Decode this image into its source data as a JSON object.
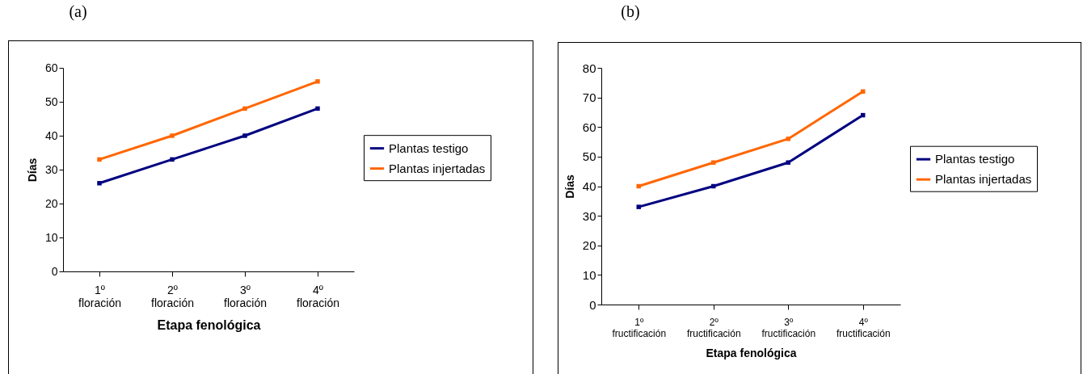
{
  "chart_data": [
    {
      "type": "line",
      "title": "(a)",
      "xlabel": "Etapa fenológica",
      "ylabel": "Días",
      "categories": [
        "1º floración",
        "2º floración",
        "3º floración",
        "4º floración"
      ],
      "series": [
        {
          "name": "Plantas testigo",
          "color": "#000080",
          "values": [
            26,
            33,
            40,
            48
          ]
        },
        {
          "name": "Plantas injertadas",
          "color": "#ff6600",
          "values": [
            33,
            40,
            48,
            56
          ]
        }
      ],
      "ylim": [
        0,
        60
      ],
      "yticks": [
        0,
        10,
        20,
        30,
        40,
        50,
        60
      ],
      "grid": false,
      "legend": "right",
      "marker": "square",
      "line_style": "solid"
    },
    {
      "type": "line",
      "title": "(b)",
      "xlabel": "Etapa fenológica",
      "ylabel": "Días",
      "categories": [
        "1º fructificación",
        "2º fructificación",
        "3º fructificación",
        "4º fructificación"
      ],
      "series": [
        {
          "name": "Plantas testigo",
          "color": "#000080",
          "values": [
            33,
            40,
            48,
            64
          ]
        },
        {
          "name": "Plantas injertadas",
          "color": "#ff6600",
          "values": [
            40,
            48,
            56,
            72
          ]
        }
      ],
      "ylim": [
        0,
        80
      ],
      "yticks": [
        0,
        10,
        20,
        30,
        40,
        50,
        60,
        70,
        80
      ],
      "grid": false,
      "legend": "right",
      "marker": "square",
      "line_style": "solid"
    }
  ]
}
